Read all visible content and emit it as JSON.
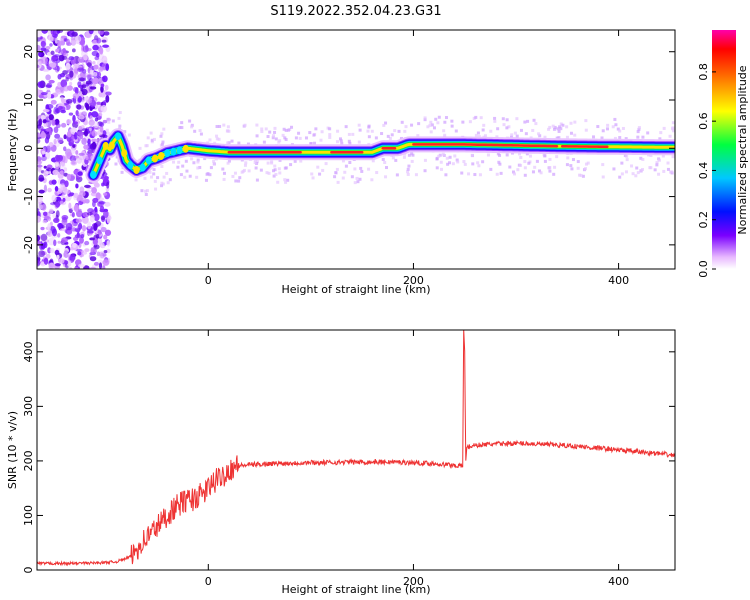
{
  "title": "S119.2022.352.04.23.G31",
  "chart_data": [
    {
      "type": "heatmap",
      "xlabel": "Height of straight line (km)",
      "ylabel": "Frequency (Hz)",
      "xlim": [
        -167,
        455
      ],
      "ylim": [
        -25,
        24.5
      ],
      "xticks": [
        0,
        200,
        400
      ],
      "yticks": [
        -20,
        -10,
        0,
        10,
        20
      ],
      "colorbar": {
        "label": "Normalized spectral amplitude",
        "range": [
          0,
          0.97
        ],
        "ticks": [
          0.0,
          0.2,
          0.4,
          0.6,
          0.8
        ]
      },
      "ridge": [
        {
          "x": -112,
          "y": -5.5
        },
        {
          "x": -104,
          "y": -1.5
        },
        {
          "x": -100,
          "y": 0.5
        },
        {
          "x": -96,
          "y": -0.3
        },
        {
          "x": -92,
          "y": 1.5
        },
        {
          "x": -88,
          "y": 2.5
        },
        {
          "x": -84,
          "y": 0.5
        },
        {
          "x": -80,
          "y": -2.5
        },
        {
          "x": -76,
          "y": -3.5
        },
        {
          "x": -70,
          "y": -4.5
        },
        {
          "x": -64,
          "y": -4.0
        },
        {
          "x": -58,
          "y": -2.5
        },
        {
          "x": -50,
          "y": -2.0
        },
        {
          "x": -40,
          "y": -1.0
        },
        {
          "x": -30,
          "y": -0.5
        },
        {
          "x": -20,
          "y": 0.0
        },
        {
          "x": 0,
          "y": -0.5
        },
        {
          "x": 20,
          "y": -0.8
        },
        {
          "x": 50,
          "y": -0.8
        },
        {
          "x": 100,
          "y": -0.8
        },
        {
          "x": 150,
          "y": -0.8
        },
        {
          "x": 160,
          "y": -0.8
        },
        {
          "x": 170,
          "y": 0.0
        },
        {
          "x": 185,
          "y": 0.0
        },
        {
          "x": 195,
          "y": 0.8
        },
        {
          "x": 250,
          "y": 0.8
        },
        {
          "x": 300,
          "y": 0.6
        },
        {
          "x": 350,
          "y": 0.4
        },
        {
          "x": 400,
          "y": 0.3
        },
        {
          "x": 455,
          "y": 0.2
        }
      ]
    },
    {
      "type": "line",
      "xlabel": "Height of straight line (km)",
      "ylabel": "SNR (10 * v/v)",
      "xlim": [
        -167,
        455
      ],
      "ylim": [
        0,
        440
      ],
      "xticks": [
        0,
        200,
        400
      ],
      "yticks": [
        0,
        100,
        200,
        300,
        400
      ],
      "color": "#ee3333",
      "series": [
        {
          "x": [
            -167,
            -140,
            -110,
            -90,
            -75,
            -65,
            -55,
            -45,
            -35,
            -25,
            -15,
            -5,
            5,
            15,
            25,
            40,
            60,
            80,
            100,
            120,
            140,
            160,
            180,
            200,
            220,
            240,
            248,
            249,
            250,
            251,
            252,
            258,
            270,
            290,
            310,
            330,
            350,
            370,
            390,
            410,
            430,
            455
          ],
          "y": [
            12,
            12,
            13,
            15,
            25,
            50,
            70,
            90,
            110,
            125,
            130,
            140,
            160,
            175,
            190,
            193,
            195,
            196,
            197,
            197,
            198,
            198,
            198,
            197,
            195,
            192,
            190,
            440,
            400,
            200,
            225,
            228,
            230,
            232,
            232,
            230,
            228,
            225,
            222,
            218,
            215,
            210
          ]
        }
      ]
    }
  ]
}
